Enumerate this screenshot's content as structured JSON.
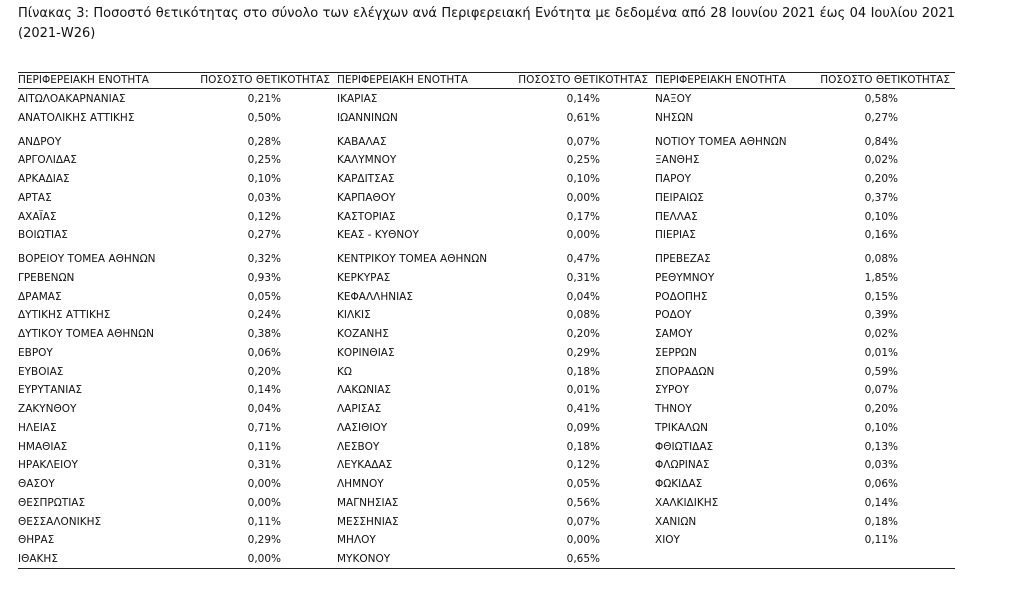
{
  "title": "Πίνακας 3:  Ποσοστό θετικότητας στο σύνολο των ελέγχων ανά Περιφερειακή Ενότητα με δεδομένα από 28 Ιουνίου 2021 έως 04 Ιουλίου 2021 (2021-W26)",
  "table": {
    "groups": [
      {
        "header": [
          "ΠΕΡΙΦΕΡΕΙΑΚΗ ΕΝΟΤΗΤΑ",
          "ΠΟΣΟΣΤΟ ΘΕΤΙΚΟΤΗΤΑΣ"
        ],
        "rows": [
          [
            "ΑΙΤΩΛΟΑΚΑΡΝΑΝΙΑΣ",
            "0,21%"
          ],
          [
            "ΑΝΑΤΟΛΙΚΗΣ ΑΤΤΙΚΗΣ",
            "0,50%"
          ],
          [
            "ΑΝΔΡΟΥ",
            "0,28%"
          ],
          [
            "ΑΡΓΟΛΙΔΑΣ",
            "0,25%"
          ],
          [
            "ΑΡΚΑΔΙΑΣ",
            "0,10%"
          ],
          [
            "ΑΡΤΑΣ",
            "0,03%"
          ],
          [
            "ΑΧΑΪΑΣ",
            "0,12%"
          ],
          [
            "ΒΟΙΩΤΙΑΣ",
            "0,27%"
          ],
          [
            "ΒΟΡΕΙΟΥ ΤΟΜΕΑ ΑΘΗΝΩΝ",
            "0,32%"
          ],
          [
            "ΓΡΕΒΕΝΩΝ",
            "0,93%"
          ],
          [
            "ΔΡΑΜΑΣ",
            "0,05%"
          ],
          [
            "ΔΥΤΙΚΗΣ ΑΤΤΙΚΗΣ",
            "0,24%"
          ],
          [
            "ΔΥΤΙΚΟΥ ΤΟΜΕΑ ΑΘΗΝΩΝ",
            "0,38%"
          ],
          [
            "ΕΒΡΟΥ",
            "0,06%"
          ],
          [
            "ΕΥΒΟΙΑΣ",
            "0,20%"
          ],
          [
            "ΕΥΡΥΤΑΝΙΑΣ",
            "0,14%"
          ],
          [
            "ΖΑΚΥΝΘΟΥ",
            "0,04%"
          ],
          [
            "ΗΛΕΙΑΣ",
            "0,71%"
          ],
          [
            "ΗΜΑΘΙΑΣ",
            "0,11%"
          ],
          [
            "ΗΡΑΚΛΕΙΟΥ",
            "0,31%"
          ],
          [
            "ΘΑΣΟΥ",
            "0,00%"
          ],
          [
            "ΘΕΣΠΡΩΤΙΑΣ",
            "0,00%"
          ],
          [
            "ΘΕΣΣΑΛΟΝΙΚΗΣ",
            "0,11%"
          ],
          [
            "ΘΗΡΑΣ",
            "0,29%"
          ],
          [
            "ΙΘΑΚΗΣ",
            "0,00%"
          ]
        ]
      },
      {
        "header": [
          "ΠΕΡΙΦΕΡΕΙΑΚΗ ΕΝΟΤΗΤΑ",
          "ΠΟΣΟΣΤΟ ΘΕΤΙΚΟΤΗΤΑΣ"
        ],
        "rows": [
          [
            "ΙΚΑΡΙΑΣ",
            "0,14%"
          ],
          [
            "ΙΩΑΝΝΙΝΩΝ",
            "0,61%"
          ],
          [
            "ΚΑΒΑΛΑΣ",
            "0,07%"
          ],
          [
            "ΚΑΛΥΜΝΟΥ",
            "0,25%"
          ],
          [
            "ΚΑΡΔΙΤΣΑΣ",
            "0,10%"
          ],
          [
            "ΚΑΡΠΑΘΟΥ",
            "0,00%"
          ],
          [
            "ΚΑΣΤΟΡΙΑΣ",
            "0,17%"
          ],
          [
            "ΚΕΑΣ - ΚΥΘΝΟΥ",
            "0,00%"
          ],
          [
            "ΚΕΝΤΡΙΚΟΥ ΤΟΜΕΑ ΑΘΗΝΩΝ",
            "0,47%"
          ],
          [
            "ΚΕΡΚΥΡΑΣ",
            "0,31%"
          ],
          [
            "ΚΕΦΑΛΛΗΝΙΑΣ",
            "0,04%"
          ],
          [
            "ΚΙΛΚΙΣ",
            "0,08%"
          ],
          [
            "ΚΟΖΑΝΗΣ",
            "0,20%"
          ],
          [
            "ΚΟΡΙΝΘΙΑΣ",
            "0,29%"
          ],
          [
            "ΚΩ",
            "0,18%"
          ],
          [
            "ΛΑΚΩΝΙΑΣ",
            "0,01%"
          ],
          [
            "ΛΑΡΙΣΑΣ",
            "0,41%"
          ],
          [
            "ΛΑΣΙΘΙΟΥ",
            "0,09%"
          ],
          [
            "ΛΕΣΒΟΥ",
            "0,18%"
          ],
          [
            "ΛΕΥΚΑΔΑΣ",
            "0,12%"
          ],
          [
            "ΛΗΜΝΟΥ",
            "0,05%"
          ],
          [
            "ΜΑΓΝΗΣΙΑΣ",
            "0,56%"
          ],
          [
            "ΜΕΣΣΗΝΙΑΣ",
            "0,07%"
          ],
          [
            "ΜΗΛΟΥ",
            "0,00%"
          ],
          [
            "ΜΥΚΟΝΟΥ",
            "0,65%"
          ]
        ]
      },
      {
        "header": [
          "ΠΕΡΙΦΕΡΕΙΑΚΗ ΕΝΟΤΗΤΑ",
          "ΠΟΣΟΣΤΟ ΘΕΤΙΚΟΤΗΤΑΣ"
        ],
        "rows": [
          [
            "ΝΑΞΟΥ",
            "0,58%"
          ],
          [
            "ΝΗΣΩΝ",
            "0,27%"
          ],
          [
            "ΝΟΤΙΟΥ ΤΟΜΕΑ ΑΘΗΝΩΝ",
            "0,84%"
          ],
          [
            "ΞΑΝΘΗΣ",
            "0,02%"
          ],
          [
            "ΠΑΡΟΥ",
            "0,20%"
          ],
          [
            "ΠΕΙΡΑΙΩΣ",
            "0,37%"
          ],
          [
            "ΠΕΛΛΑΣ",
            "0,10%"
          ],
          [
            "ΠΙΕΡΙΑΣ",
            "0,16%"
          ],
          [
            "ΠΡΕΒΕΖΑΣ",
            "0,08%"
          ],
          [
            "ΡΕΘΥΜΝΟΥ",
            "1,85%"
          ],
          [
            "ΡΟΔΟΠΗΣ",
            "0,15%"
          ],
          [
            "ΡΟΔΟΥ",
            "0,39%"
          ],
          [
            "ΣΑΜΟΥ",
            "0,02%"
          ],
          [
            "ΣΕΡΡΩΝ",
            "0,01%"
          ],
          [
            "ΣΠΟΡΑΔΩΝ",
            "0,59%"
          ],
          [
            "ΣΥΡΟΥ",
            "0,07%"
          ],
          [
            "ΤΗΝΟΥ",
            "0,20%"
          ],
          [
            "ΤΡΙΚΑΛΩΝ",
            "0,10%"
          ],
          [
            "ΦΘΙΩΤΙΔΑΣ",
            "0,13%"
          ],
          [
            "ΦΛΩΡΙΝΑΣ",
            "0,03%"
          ],
          [
            "ΦΩΚΙΔΑΣ",
            "0,06%"
          ],
          [
            "ΧΑΛΚΙΔΙΚΗΣ",
            "0,14%"
          ],
          [
            "ΧΑΝΙΩΝ",
            "0,18%"
          ],
          [
            "ΧΙΟΥ",
            "0,11%"
          ]
        ]
      }
    ]
  }
}
